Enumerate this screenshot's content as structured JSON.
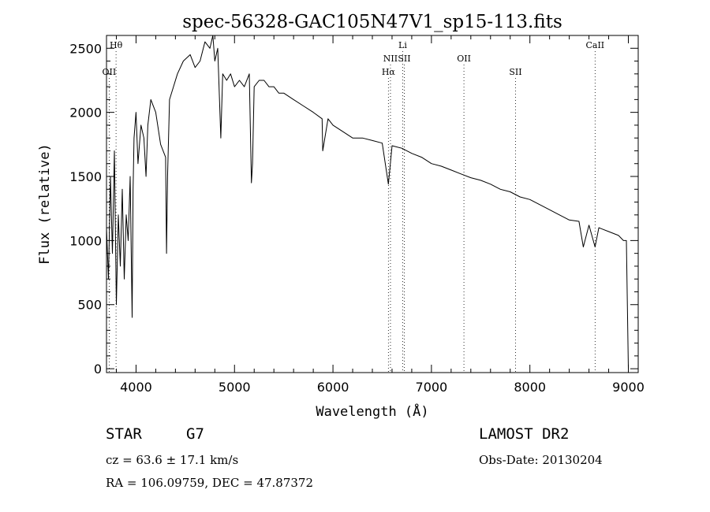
{
  "chart_data": {
    "type": "line",
    "title": "spec-56328-GAC105N47V1_sp15-113.fits",
    "xlabel": "Wavelength (Å)",
    "ylabel": "Flux (relative)",
    "xlim": [
      3700,
      9100
    ],
    "ylim": [
      -30,
      2600
    ],
    "xticks": [
      4000,
      5000,
      6000,
      7000,
      8000,
      9000
    ],
    "yticks": [
      0,
      500,
      1000,
      1500,
      2000,
      2500
    ],
    "grid": false,
    "series": [
      {
        "name": "flux",
        "x": [
          3700,
          3720,
          3740,
          3760,
          3780,
          3800,
          3820,
          3840,
          3860,
          3880,
          3900,
          3920,
          3940,
          3960,
          3970,
          3980,
          4000,
          4020,
          4050,
          4080,
          4101,
          4120,
          4150,
          4200,
          4250,
          4300,
          4310,
          4320,
          4340,
          4380,
          4420,
          4480,
          4550,
          4600,
          4650,
          4700,
          4750,
          4780,
          4800,
          4830,
          4861,
          4880,
          4920,
          4960,
          5000,
          5050,
          5100,
          5150,
          5172,
          5183,
          5200,
          5250,
          5300,
          5350,
          5400,
          5450,
          5500,
          5600,
          5700,
          5800,
          5890,
          5896,
          5950,
          6000,
          6100,
          6200,
          6300,
          6400,
          6500,
          6563,
          6600,
          6700,
          6800,
          6900,
          7000,
          7100,
          7200,
          7300,
          7400,
          7500,
          7600,
          7700,
          7800,
          7900,
          8000,
          8100,
          8200,
          8300,
          8400,
          8498,
          8542,
          8600,
          8662,
          8700,
          8800,
          8900,
          8950,
          8980,
          9000
        ],
        "y": [
          1100,
          700,
          1500,
          900,
          1700,
          500,
          1200,
          800,
          1400,
          700,
          1200,
          1000,
          1500,
          400,
          1400,
          1800,
          2000,
          1600,
          1900,
          1800,
          1500,
          1900,
          2100,
          2000,
          1750,
          1650,
          900,
          1500,
          2100,
          2200,
          2300,
          2400,
          2450,
          2350,
          2400,
          2550,
          2500,
          2600,
          2400,
          2500,
          1800,
          2300,
          2250,
          2300,
          2200,
          2250,
          2200,
          2300,
          1450,
          1600,
          2200,
          2250,
          2250,
          2200,
          2200,
          2150,
          2150,
          2100,
          2050,
          2000,
          1950,
          1700,
          1950,
          1900,
          1850,
          1800,
          1800,
          1780,
          1760,
          1440,
          1740,
          1720,
          1680,
          1650,
          1600,
          1580,
          1550,
          1520,
          1490,
          1470,
          1440,
          1400,
          1380,
          1340,
          1320,
          1280,
          1240,
          1200,
          1160,
          1150,
          950,
          1120,
          950,
          1100,
          1070,
          1040,
          1000,
          1000,
          0
        ]
      }
    ],
    "lines": [
      {
        "label": "Hθ",
        "x": 3797,
        "row": 0
      },
      {
        "label": "OII",
        "x": 3727,
        "row": 2
      },
      {
        "label": "Li",
        "x": 6708,
        "row": 0
      },
      {
        "label": "NII",
        "x": 6584,
        "row": 1
      },
      {
        "label": "SII",
        "x": 6724,
        "row": 1
      },
      {
        "label": "Hα",
        "x": 6563,
        "row": 2
      },
      {
        "label": "OII",
        "x": 7330,
        "row": 1
      },
      {
        "label": "SII",
        "x": 7854,
        "row": 2
      },
      {
        "label": "CaII",
        "x": 8662,
        "row": 0
      }
    ]
  },
  "info": {
    "object_class": "STAR",
    "subclass": "G7",
    "survey": "LAMOST DR2",
    "cz": "cz = 63.6 ± 17.1 km/s",
    "obs_date": "Obs-Date: 20130204",
    "radec": "RA = 106.09759, DEC =  47.87372"
  }
}
